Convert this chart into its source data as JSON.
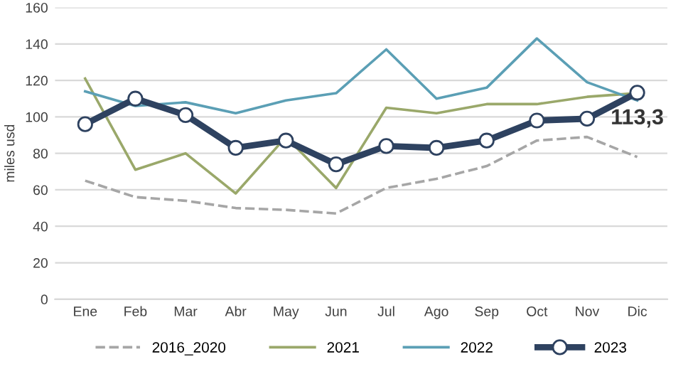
{
  "chart_data": {
    "type": "line",
    "ylabel": "miles usd",
    "categories": [
      "Ene",
      "Feb",
      "Mar",
      "Abr",
      "May",
      "Jun",
      "Jul",
      "Ago",
      "Sep",
      "Oct",
      "Nov",
      "Dic"
    ],
    "series": [
      {
        "name": "2016_2020",
        "color": "#a6a6a6",
        "line_style": "dashed",
        "values": [
          65,
          56,
          54,
          50,
          49,
          47,
          61,
          66,
          73,
          87,
          89,
          78
        ]
      },
      {
        "name": "2021",
        "color": "#9aa86a",
        "values": [
          121,
          71,
          80,
          58,
          89,
          61,
          105,
          102,
          107,
          107,
          111,
          113
        ]
      },
      {
        "name": "2022",
        "color": "#5b9fb5",
        "values": [
          114,
          106,
          108,
          102,
          109,
          113,
          137,
          110,
          116,
          143,
          119,
          109
        ]
      },
      {
        "name": "2023",
        "color": "#2e4260",
        "marker": "circle",
        "values": [
          96,
          110,
          101,
          83,
          87,
          74,
          84,
          83,
          87,
          98,
          99,
          113.3
        ],
        "value_labels": [
          null,
          null,
          null,
          null,
          null,
          null,
          null,
          null,
          null,
          null,
          null,
          "113,3"
        ]
      }
    ],
    "ylim": [
      0,
      160
    ],
    "yticks": [
      0,
      20,
      40,
      60,
      80,
      100,
      120,
      140,
      160
    ],
    "grid": "y",
    "legend": "bottom"
  }
}
